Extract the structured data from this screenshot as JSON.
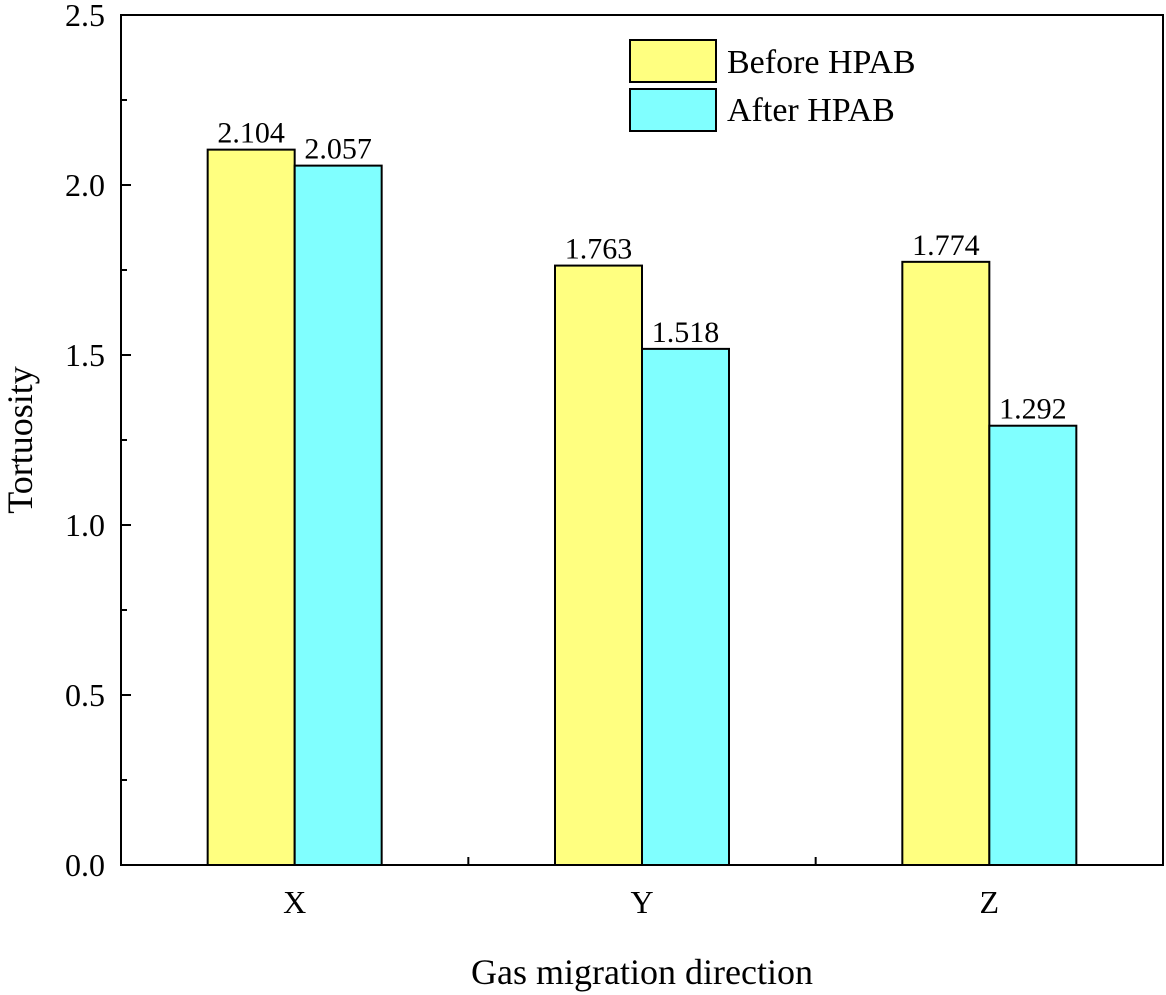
{
  "chart_data": {
    "type": "bar",
    "title": "",
    "xlabel": "Gas migration direction",
    "ylabel": "Tortuosity",
    "categories": [
      "X",
      "Y",
      "Z"
    ],
    "series": [
      {
        "name": "Before HPAB",
        "values": [
          2.104,
          1.763,
          1.774
        ],
        "labels": [
          "2.104",
          "1.763",
          "1.774"
        ],
        "color": "#FFFF80"
      },
      {
        "name": "After HPAB",
        "values": [
          2.057,
          1.518,
          1.292
        ],
        "labels": [
          "2.057",
          "1.518",
          "1.292"
        ],
        "color": "#80FFFF"
      }
    ],
    "ylim": [
      0,
      2.5
    ],
    "yticks": [
      0,
      0.5,
      1.0,
      1.5,
      2.0,
      2.5
    ],
    "ytick_labels": [
      "0.0",
      "0.5",
      "1.0",
      "1.5",
      "2.0",
      "2.5"
    ],
    "grid": false,
    "legend_position": "top-right"
  }
}
